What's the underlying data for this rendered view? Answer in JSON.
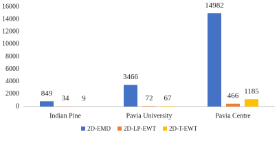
{
  "chart_data": {
    "type": "bar",
    "categories": [
      "Indian Pine",
      "Pavia University",
      "Pavia Centre"
    ],
    "series": [
      {
        "name": "2D-EMD",
        "color": "#4472c4",
        "values": [
          849,
          3466,
          14982
        ]
      },
      {
        "name": "2D-LP-EWT",
        "color": "#ed7d31",
        "values": [
          34,
          72,
          466
        ]
      },
      {
        "name": "2D-T-EWT",
        "color": "#ffc000",
        "values": [
          9,
          67,
          1185
        ]
      }
    ],
    "ylim": [
      0,
      16000
    ],
    "yticks": [
      0,
      2000,
      4000,
      6000,
      8000,
      10000,
      12000,
      14000,
      16000
    ],
    "grid": false,
    "legend": "bottom"
  }
}
